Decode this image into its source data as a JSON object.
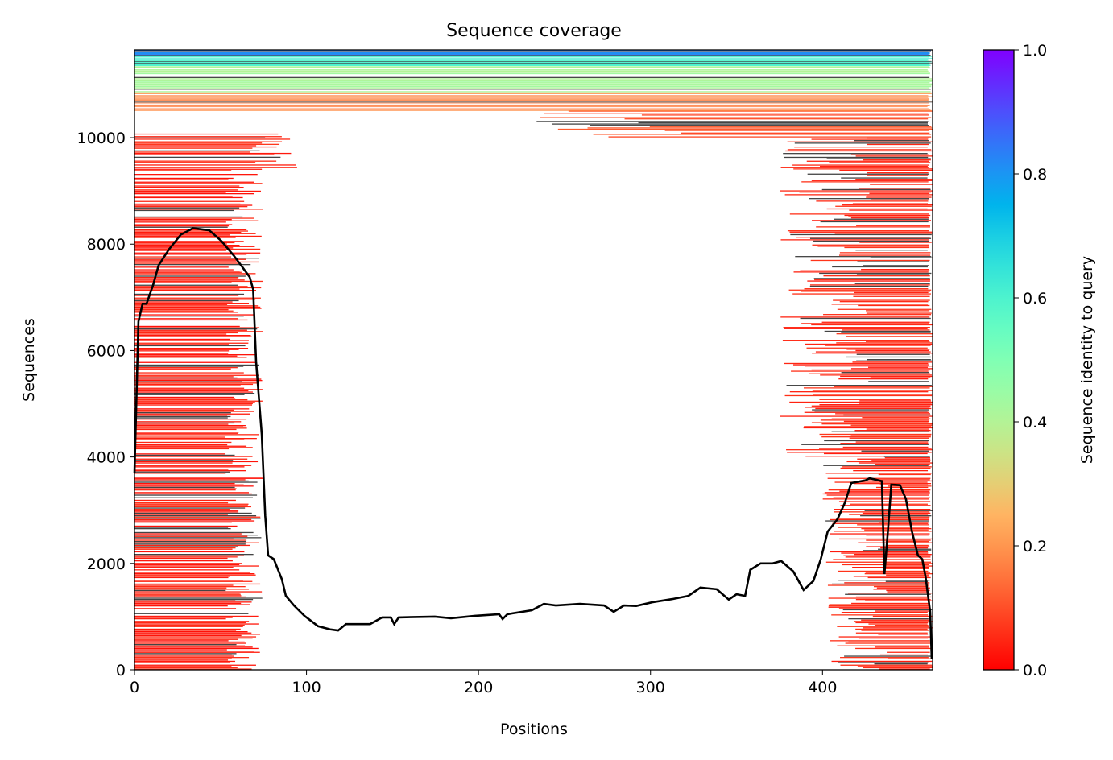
{
  "chart_data": {
    "type": "line",
    "title": "Sequence coverage",
    "xlabel": "Positions",
    "ylabel": "Sequences",
    "xlim": [
      0,
      464
    ],
    "ylim": [
      0,
      11650
    ],
    "xticks": [
      0,
      100,
      200,
      300,
      400
    ],
    "yticks": [
      0,
      2000,
      4000,
      6000,
      8000,
      10000
    ],
    "grid": false,
    "colorbar": {
      "label": "Sequence identity to query",
      "colormap": "rainbow_r",
      "range": [
        0,
        1
      ],
      "ticks": [
        "0.0",
        "0.2",
        "0.4",
        "0.6",
        "0.8",
        "1.0"
      ]
    },
    "coverage_line": {
      "color": "#000000",
      "x": [
        0,
        2.3,
        4.7,
        7,
        10.8,
        14,
        20,
        27,
        34,
        43.5,
        50.5,
        57.6,
        62,
        67,
        69,
        70.7,
        74,
        76,
        77.7,
        81,
        85.7,
        88,
        92.7,
        98.8,
        106.7,
        113.8,
        118.4,
        123,
        130,
        137,
        144,
        149,
        151,
        153.6,
        174.6,
        184,
        198,
        212,
        214,
        216.8,
        231,
        238,
        245,
        259,
        273,
        278.6,
        284.6,
        291.7,
        301,
        312.7,
        322,
        329,
        338.5,
        345.5,
        350,
        355,
        358,
        364,
        371,
        376,
        383,
        389,
        394.7,
        399,
        403,
        408.7,
        413,
        416.7,
        425,
        427.4,
        434.5,
        436,
        438,
        440,
        445,
        448.5,
        452,
        455.5,
        458,
        460,
        462.6,
        463.5
      ],
      "y": [
        3700,
        6545,
        6880,
        6880,
        7230,
        7600,
        7900,
        8180,
        8300,
        8260,
        8060,
        7790,
        7600,
        7380,
        7150,
        5790,
        4420,
        2900,
        2150,
        2080,
        1700,
        1390,
        1210,
        1015,
        820,
        760,
        740,
        860,
        860,
        860,
        985,
        985,
        860,
        985,
        1000,
        970,
        1015,
        1045,
        955,
        1045,
        1120,
        1240,
        1210,
        1240,
        1210,
        1090,
        1210,
        1200,
        1270,
        1330,
        1390,
        1545,
        1515,
        1320,
        1420,
        1390,
        1880,
        2000,
        2000,
        2045,
        1850,
        1500,
        1670,
        2080,
        2600,
        2830,
        3140,
        3510,
        3560,
        3600,
        3545,
        1800,
        2600,
        3480,
        3470,
        3210,
        2600,
        2150,
        2080,
        1730,
        1090,
        210
      ]
    },
    "msa_blocks": [
      {
        "x": [
          0,
          75
        ],
        "seq": [
          0,
          9400
        ],
        "identity": 0.04
      },
      {
        "x": [
          0,
          95
        ],
        "seq": [
          9400,
          10100
        ],
        "identity": 0.05
      },
      {
        "x": [
          375,
          464
        ],
        "seq": [
          4000,
          10000
        ],
        "identity": 0.05
      },
      {
        "x": [
          400,
          464
        ],
        "seq": [
          0,
          4000
        ],
        "identity": 0.05
      },
      {
        "x": [
          230,
          464
        ],
        "seq": [
          10000,
          10500
        ],
        "identity": 0.1
      },
      {
        "x": [
          0,
          464
        ],
        "seq": [
          10500,
          10850
        ],
        "identity": 0.18
      },
      {
        "x": [
          0,
          464
        ],
        "seq": [
          10850,
          11350
        ],
        "identity": 0.42
      },
      {
        "x": [
          0,
          464
        ],
        "seq": [
          11350,
          11550
        ],
        "identity": 0.6
      },
      {
        "x": [
          0,
          464
        ],
        "seq": [
          11550,
          11650
        ],
        "identity": 0.82
      }
    ]
  }
}
